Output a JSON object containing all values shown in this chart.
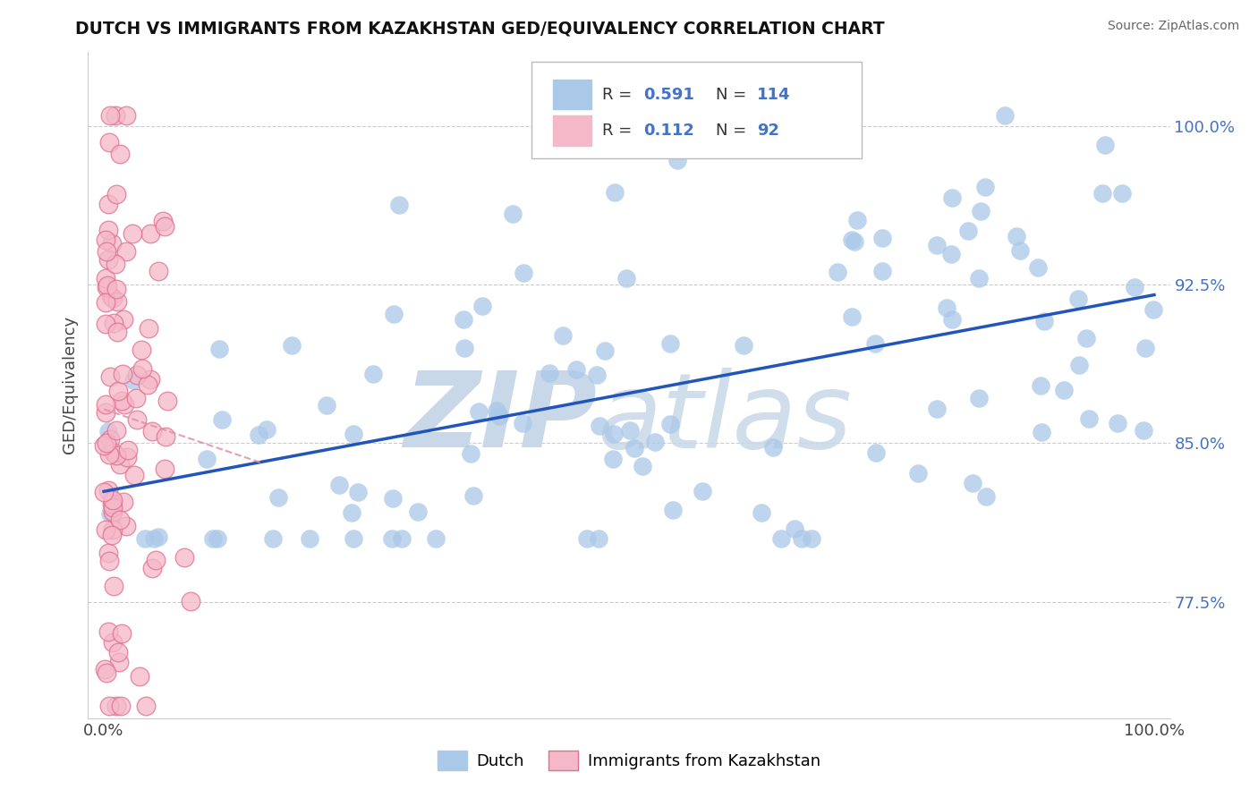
{
  "title": "DUTCH VS IMMIGRANTS FROM KAZAKHSTAN GED/EQUIVALENCY CORRELATION CHART",
  "source": "Source: ZipAtlas.com",
  "ylabel": "GED/Equivalency",
  "x_min": 0.0,
  "x_max": 1.0,
  "y_min": 0.72,
  "y_max": 1.035,
  "y_tick_vals": [
    0.775,
    0.85,
    0.925,
    1.0
  ],
  "y_tick_labels": [
    "77.5%",
    "85.0%",
    "92.5%",
    "100.0%"
  ],
  "legend_r_blue": "0.591",
  "legend_n_blue": "114",
  "legend_r_pink": "0.112",
  "legend_n_pink": "92",
  "legend_label_blue": "Dutch",
  "legend_label_pink": "Immigrants from Kazakhstan",
  "blue_scatter_color": "#aac8e8",
  "pink_scatter_color": "#f5b8c8",
  "pink_edge_color": "#e07090",
  "blue_line_color": "#2255bb",
  "pink_line_color": "#e090a8",
  "right_tick_color": "#4472c4",
  "watermark_zip_color": "#c8d8e8",
  "watermark_atlas_color": "#c8d8e8",
  "grid_color": "#cccccc",
  "title_color": "#111111",
  "source_color": "#666666"
}
